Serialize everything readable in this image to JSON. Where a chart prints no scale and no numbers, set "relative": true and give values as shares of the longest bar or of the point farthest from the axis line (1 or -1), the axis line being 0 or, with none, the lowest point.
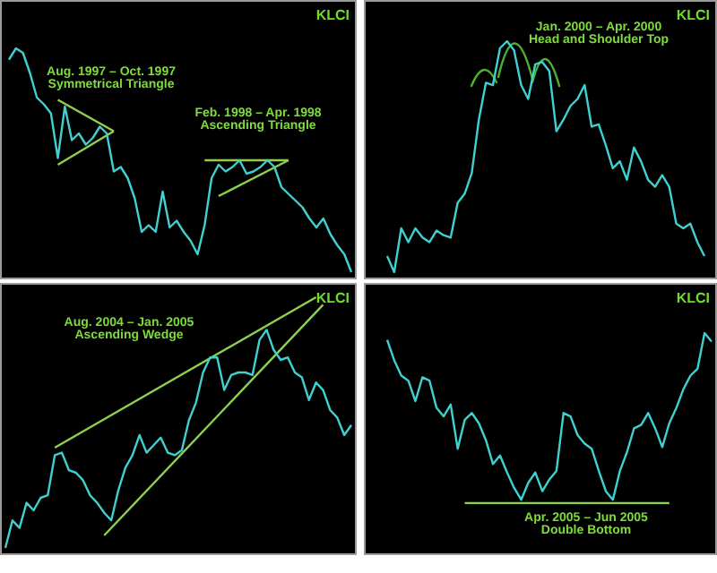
{
  "chart_data": [
    {
      "type": "line",
      "title": "KLCI",
      "relative": true,
      "legend": false,
      "marker": "none",
      "categories": [
        null,
        null,
        null,
        null,
        null,
        null,
        null,
        null,
        null,
        null,
        null,
        null,
        null,
        null,
        null,
        null,
        null,
        null,
        null,
        null,
        null,
        null,
        null,
        null,
        null,
        null,
        null,
        null,
        null,
        null,
        null,
        null,
        null,
        null,
        null,
        null,
        null,
        null,
        null,
        null,
        null,
        null,
        null,
        null,
        null,
        null,
        null,
        null,
        null,
        null
      ],
      "annotations": [
        "Aug. 1997 – Oct. 1997",
        "Symmetrical Triangle",
        "Feb. 1998 – Apr. 1998",
        "Ascending Triangle"
      ],
      "series": [
        {
          "color": "#40d0d0",
          "values": [
            0.95,
            1.0,
            0.98,
            0.89,
            0.78,
            0.75,
            0.71,
            0.51,
            0.74,
            0.59,
            0.62,
            0.57,
            0.6,
            0.65,
            0.62,
            0.45,
            0.47,
            0.42,
            0.33,
            0.18,
            0.21,
            0.18,
            0.36,
            0.2,
            0.23,
            0.18,
            0.14,
            0.08,
            0.21,
            0.42,
            0.48,
            0.45,
            0.47,
            0.5,
            0.44,
            0.45,
            0.47,
            0.5,
            0.47,
            0.38,
            0.35,
            0.32,
            0.29,
            0.24,
            0.2,
            0.24,
            0.17,
            0.12,
            0.08,
            0
          ]
        },
        {
          "color": "#8fd14f",
          "values": [
            null,
            null,
            null,
            null,
            null,
            null,
            null,
            0.77,
            null,
            null,
            null,
            null,
            null,
            null,
            null,
            0.63,
            null,
            null,
            null,
            null,
            null,
            null,
            null,
            null,
            null,
            null,
            null,
            null,
            null,
            null,
            null,
            null,
            null,
            null,
            null,
            null,
            null,
            null,
            null,
            null,
            null,
            null,
            null,
            null,
            null,
            null,
            null,
            null,
            null,
            null
          ]
        },
        {
          "color": "#8ed24e",
          "values": [
            null,
            null,
            null,
            null,
            null,
            null,
            null,
            0.48,
            null,
            null,
            null,
            null,
            null,
            null,
            null,
            0.63,
            null,
            null,
            null,
            null,
            null,
            null,
            null,
            null,
            null,
            null,
            null,
            null,
            null,
            null,
            null,
            null,
            null,
            null,
            null,
            null,
            null,
            null,
            null,
            null,
            null,
            null,
            null,
            null,
            null,
            null,
            null,
            null,
            null,
            null
          ]
        },
        {
          "color": "#90d050",
          "values": [
            null,
            null,
            null,
            null,
            null,
            null,
            null,
            null,
            null,
            null,
            null,
            null,
            null,
            null,
            null,
            null,
            null,
            null,
            null,
            null,
            null,
            null,
            null,
            null,
            null,
            null,
            null,
            null,
            0.5,
            null,
            null,
            null,
            null,
            null,
            null,
            null,
            null,
            null,
            null,
            null,
            0.5,
            null,
            null,
            null,
            null,
            null,
            null,
            null,
            null,
            null
          ]
        },
        {
          "color": "#8dd14d",
          "values": [
            null,
            null,
            null,
            null,
            null,
            null,
            null,
            null,
            null,
            null,
            null,
            null,
            null,
            null,
            null,
            null,
            null,
            null,
            null,
            null,
            null,
            null,
            null,
            null,
            null,
            null,
            null,
            null,
            null,
            null,
            0.34,
            null,
            null,
            null,
            null,
            null,
            null,
            null,
            null,
            null,
            0.5,
            null,
            null,
            null,
            null,
            null,
            null,
            null,
            null,
            null
          ]
        }
      ]
    },
    {
      "type": "line",
      "title": "KLCI",
      "relative": true,
      "legend": false,
      "marker": "none",
      "categories": [
        null,
        null,
        null,
        null,
        null,
        null,
        null,
        null,
        null,
        null,
        null,
        null,
        null,
        null,
        null,
        null,
        null,
        null,
        null,
        null,
        null,
        null,
        null,
        null,
        null,
        null,
        null,
        null,
        null,
        null,
        null,
        null,
        null,
        null,
        null,
        null,
        null,
        null,
        null,
        null,
        null,
        null,
        null,
        null,
        null,
        null
      ],
      "annotations": [
        "Jan. 2000 – Apr. 2000",
        "Head and Shoulder Top"
      ],
      "series": [
        {
          "color": "#40d0d0",
          "values": [
            0.07,
            0,
            0.19,
            0.13,
            0.19,
            0.15,
            0.13,
            0.18,
            0.16,
            0.15,
            0.3,
            0.34,
            0.43,
            0.66,
            0.82,
            0.81,
            0.97,
            1.0,
            0.96,
            0.81,
            0.75,
            0.9,
            0.91,
            0.87,
            0.61,
            0.66,
            0.72,
            0.75,
            0.81,
            0.63,
            0.64,
            0.55,
            0.45,
            0.48,
            0.4,
            0.54,
            0.48,
            0.4,
            0.37,
            0.42,
            0.37,
            0.21,
            0.19,
            0.21,
            0.13,
            0.07
          ]
        }
      ]
    },
    {
      "type": "line",
      "title": "KLCI",
      "relative": true,
      "legend": false,
      "marker": "none",
      "categories": [
        null,
        null,
        null,
        null,
        null,
        null,
        null,
        null,
        null,
        null,
        null,
        null,
        null,
        null,
        null,
        null,
        null,
        null,
        null,
        null,
        null,
        null,
        null,
        null,
        null,
        null,
        null,
        null,
        null,
        null,
        null,
        null,
        null,
        null,
        null,
        null,
        null,
        null,
        null,
        null,
        null,
        null,
        null,
        null,
        null,
        null,
        null,
        null,
        null,
        null
      ],
      "annotations": [
        "Aug. 2004 – Jan. 2005",
        "Ascending Wedge"
      ],
      "series": [
        {
          "color": "#40d0d0",
          "values": [
            0,
            0.11,
            0.08,
            0.18,
            0.15,
            0.2,
            0.21,
            0.37,
            0.38,
            0.31,
            0.3,
            0.27,
            0.21,
            0.18,
            0.14,
            0.11,
            0.23,
            0.32,
            0.37,
            0.45,
            0.38,
            0.41,
            0.44,
            0.38,
            0.37,
            0.39,
            0.51,
            0.58,
            0.7,
            0.76,
            0.76,
            0.63,
            0.69,
            0.7,
            0.7,
            0.69,
            0.83,
            0.87,
            0.79,
            0.75,
            0.76,
            0.7,
            0.68,
            0.59,
            0.66,
            0.63,
            0.55,
            0.52,
            0.45,
            0.49
          ]
        },
        {
          "color": "#8fd14f",
          "values": [
            null,
            null,
            null,
            null,
            null,
            null,
            null,
            0.4,
            null,
            null,
            null,
            null,
            null,
            null,
            null,
            null,
            null,
            null,
            null,
            null,
            null,
            null,
            null,
            null,
            null,
            null,
            null,
            null,
            null,
            null,
            null,
            null,
            null,
            null,
            null,
            null,
            null,
            null,
            null,
            null,
            null,
            null,
            null,
            null,
            1.0,
            null,
            null,
            null,
            null,
            null
          ]
        },
        {
          "color": "#8ed24e",
          "values": [
            null,
            null,
            null,
            null,
            null,
            null,
            null,
            null,
            null,
            null,
            null,
            null,
            null,
            null,
            0.05,
            null,
            null,
            null,
            null,
            null,
            null,
            null,
            null,
            null,
            null,
            null,
            null,
            null,
            null,
            null,
            null,
            null,
            null,
            null,
            null,
            null,
            null,
            null,
            null,
            null,
            null,
            null,
            null,
            null,
            null,
            0.97,
            null,
            null,
            null,
            null
          ]
        }
      ]
    },
    {
      "type": "line",
      "title": "KLCI",
      "relative": true,
      "legend": false,
      "marker": "none",
      "categories": [
        null,
        null,
        null,
        null,
        null,
        null,
        null,
        null,
        null,
        null,
        null,
        null,
        null,
        null,
        null,
        null,
        null,
        null,
        null,
        null,
        null,
        null,
        null,
        null,
        null,
        null,
        null,
        null,
        null,
        null,
        null,
        null,
        null,
        null,
        null,
        null,
        null,
        null,
        null,
        null,
        null,
        null,
        null,
        null,
        null,
        null,
        null
      ],
      "annotations": [
        "Apr. 2005 – Jun 2005",
        "Double Bottom"
      ],
      "series": [
        {
          "color": "#40d0d0",
          "values": [
            0.96,
            0.84,
            0.75,
            0.72,
            0.6,
            0.74,
            0.72,
            0.56,
            0.51,
            0.58,
            0.32,
            0.49,
            0.53,
            0.47,
            0.37,
            0.23,
            0.28,
            0.18,
            0.09,
            0.02,
            0.12,
            0.18,
            0.07,
            0.14,
            0.19,
            0.53,
            0.51,
            0.4,
            0.35,
            0.32,
            0.19,
            0.07,
            0.02,
            0.19,
            0.3,
            0.44,
            0.46,
            0.53,
            0.44,
            0.33,
            0.47,
            0.56,
            0.67,
            0.75,
            0.79,
            1,
            0.95
          ]
        },
        {
          "color": "#8fd14f",
          "values": [
            null,
            null,
            null,
            null,
            null,
            null,
            null,
            null,
            null,
            null,
            null,
            0,
            null,
            null,
            null,
            null,
            null,
            null,
            null,
            null,
            null,
            null,
            null,
            null,
            null,
            null,
            null,
            null,
            null,
            null,
            null,
            null,
            null,
            null,
            null,
            null,
            null,
            null,
            null,
            null,
            0,
            null,
            null,
            null,
            null,
            null,
            null
          ]
        }
      ]
    }
  ]
}
